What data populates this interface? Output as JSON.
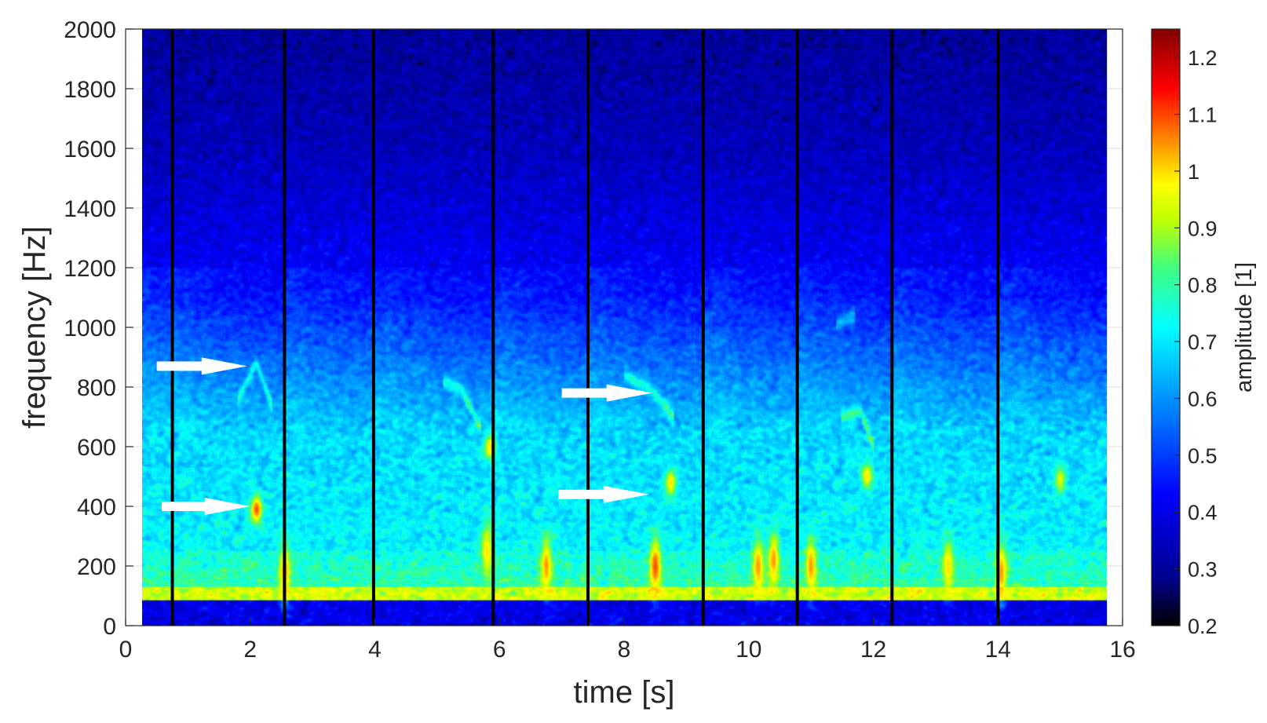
{
  "chart_data": {
    "type": "heatmap",
    "subtype": "spectrogram",
    "xlabel": "time [s]",
    "ylabel": "frequency [Hz]",
    "colorbar_label": "amplitude [1]",
    "colormap": "jet",
    "xlim": [
      0,
      16
    ],
    "ylim": [
      0,
      2000
    ],
    "clim": [
      0.2,
      1.25
    ],
    "x_ticks": [
      "0",
      "2",
      "4",
      "6",
      "8",
      "10",
      "12",
      "14",
      "16"
    ],
    "y_ticks": [
      "0",
      "200",
      "400",
      "600",
      "800",
      "1000",
      "1200",
      "1400",
      "1600",
      "1800",
      "2000"
    ],
    "colorbar_ticks": [
      "0.2",
      "0.3",
      "0.4",
      "0.5",
      "0.6",
      "0.7",
      "0.8",
      "0.9",
      "1",
      "1.1",
      "1.2"
    ],
    "data_time_range": [
      0.25,
      15.75
    ],
    "grid": true,
    "segment_boundaries_s": [
      0.75,
      2.55,
      3.98,
      5.9,
      7.42,
      9.27,
      10.78,
      12.3,
      14.0
    ],
    "hot_spots": [
      {
        "t": 2.1,
        "f": 390,
        "amp": 1.1
      },
      {
        "t": 2.55,
        "f": 180,
        "amp": 1.05
      },
      {
        "t": 5.85,
        "f": 600,
        "amp": 1.0
      },
      {
        "t": 5.8,
        "f": 250,
        "amp": 1.0
      },
      {
        "t": 6.75,
        "f": 200,
        "amp": 1.05
      },
      {
        "t": 8.5,
        "f": 200,
        "amp": 1.1
      },
      {
        "t": 8.75,
        "f": 480,
        "amp": 1.0
      },
      {
        "t": 10.15,
        "f": 200,
        "amp": 1.05
      },
      {
        "t": 10.4,
        "f": 220,
        "amp": 1.05
      },
      {
        "t": 11.0,
        "f": 200,
        "amp": 1.05
      },
      {
        "t": 11.9,
        "f": 500,
        "amp": 1.0
      },
      {
        "t": 13.2,
        "f": 200,
        "amp": 1.0
      },
      {
        "t": 14.05,
        "f": 180,
        "amp": 1.05
      },
      {
        "t": 15.0,
        "f": 490,
        "amp": 0.95
      }
    ],
    "faint_traces": [
      {
        "t": [
          1.8,
          2.1,
          2.35
        ],
        "f": [
          760,
          880,
          740
        ]
      },
      {
        "t": [
          5.1,
          5.4,
          5.7
        ],
        "f": [
          820,
          790,
          660
        ]
      },
      {
        "t": [
          8.0,
          8.4,
          8.8
        ],
        "f": [
          840,
          800,
          700
        ]
      },
      {
        "t": [
          11.5,
          11.8,
          12.0
        ],
        "f": [
          700,
          720,
          600
        ]
      },
      {
        "t": [
          11.4,
          11.7
        ],
        "f": [
          1010,
          1040
        ]
      }
    ],
    "annotations": [
      {
        "type": "arrow",
        "color": "#ffffff",
        "t_start": 0.5,
        "t_end": 1.95,
        "f": 870
      },
      {
        "type": "arrow",
        "color": "#ffffff",
        "t_start": 0.58,
        "t_end": 2.0,
        "f": 400
      },
      {
        "type": "arrow",
        "color": "#ffffff",
        "t_start": 7.0,
        "t_end": 8.45,
        "f": 780
      },
      {
        "type": "arrow",
        "color": "#ffffff",
        "t_start": 6.95,
        "t_end": 8.4,
        "f": 440
      }
    ]
  }
}
